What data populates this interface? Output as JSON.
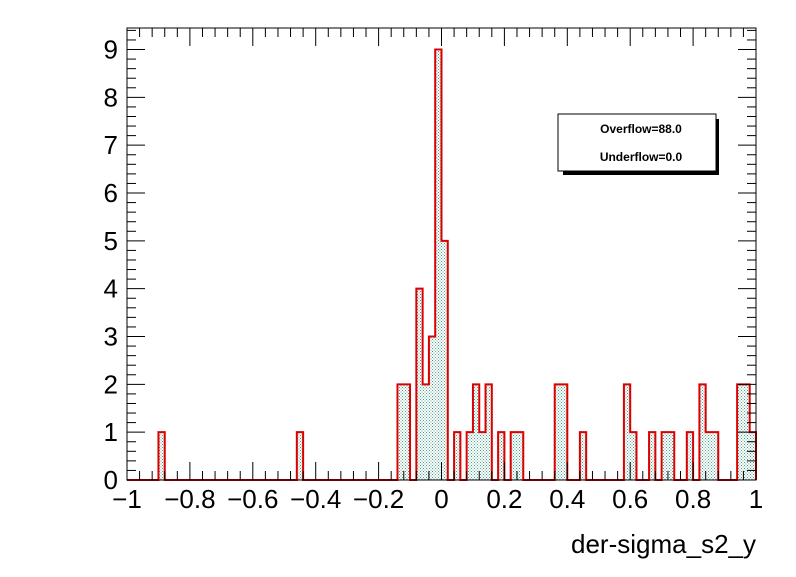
{
  "chart_data": {
    "type": "bar",
    "title": "",
    "xlabel": "der-sigma_s2_y",
    "ylabel": "",
    "xlim": [
      -1,
      1
    ],
    "ylim": [
      0,
      9.45
    ],
    "bin_width": 0.02,
    "bin_centers": [
      -0.89,
      -0.45,
      -0.13,
      -0.11,
      -0.07,
      -0.05,
      -0.03,
      -0.01,
      0.01,
      0.05,
      0.09,
      0.11,
      0.13,
      0.15,
      0.19,
      0.23,
      0.25,
      0.37,
      0.39,
      0.45,
      0.59,
      0.61,
      0.67,
      0.71,
      0.73,
      0.79,
      0.83,
      0.85,
      0.87,
      0.95,
      0.97,
      0.99
    ],
    "counts": [
      1,
      1,
      2,
      2,
      4,
      2,
      3,
      9,
      5,
      1,
      1,
      2,
      1,
      2,
      1,
      1,
      1,
      2,
      2,
      1,
      2,
      1,
      1,
      1,
      1,
      1,
      2,
      1,
      1,
      2,
      2,
      1
    ],
    "x_ticks": [
      "−1",
      "−0.8",
      "−0.6",
      "−0.4",
      "−0.2",
      "0",
      "0.2",
      "0.4",
      "0.6",
      "0.8",
      "1"
    ],
    "x_tick_values": [
      -1,
      -0.8,
      -0.6,
      -0.4,
      -0.2,
      0,
      0.2,
      0.4,
      0.6,
      0.8,
      1
    ],
    "y_ticks": [
      "0",
      "1",
      "2",
      "3",
      "4",
      "5",
      "6",
      "7",
      "8",
      "9"
    ],
    "y_tick_values": [
      0,
      1,
      2,
      3,
      4,
      5,
      6,
      7,
      8,
      9
    ],
    "grid": false,
    "legend_position": "top-right",
    "colors": {
      "line": "#dd0000",
      "fill": "#6fb8a8",
      "frame": "#000000"
    }
  },
  "stats_box": {
    "overflow": "Overflow=88.0",
    "underflow": "Underflow=0.0"
  }
}
